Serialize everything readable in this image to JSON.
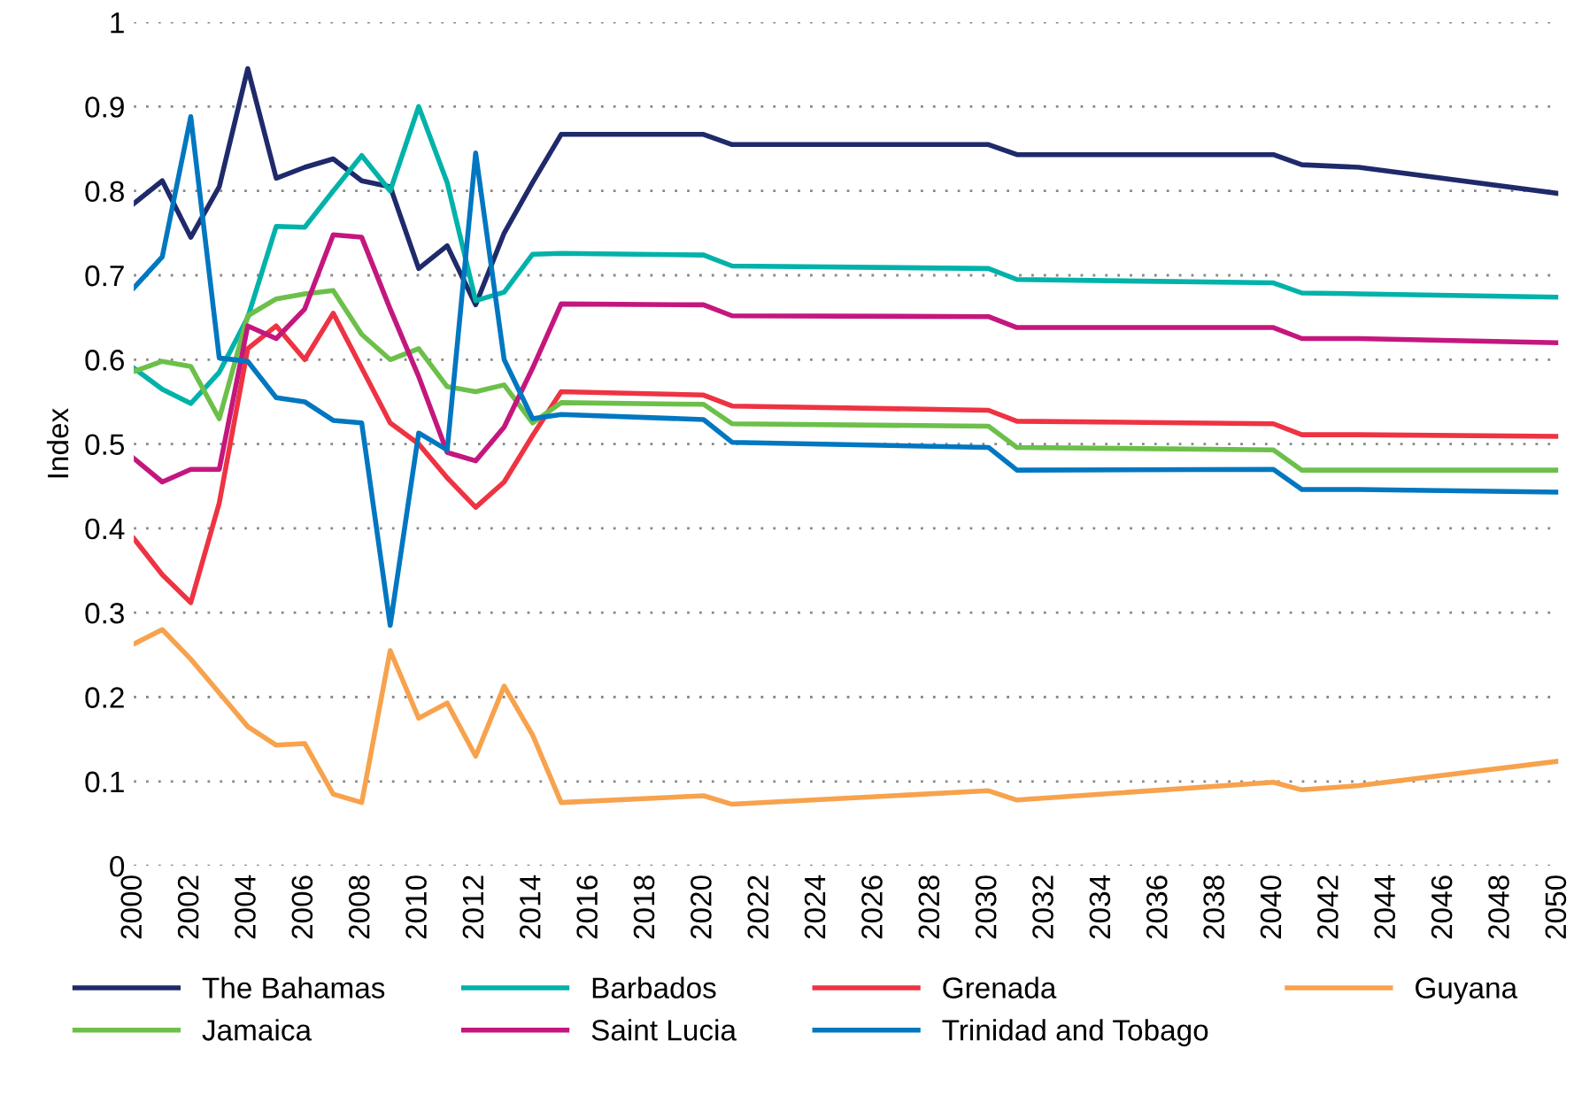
{
  "chart_data": {
    "type": "line",
    "ylabel": "Index",
    "x": [
      2000,
      2001,
      2002,
      2003,
      2004,
      2005,
      2006,
      2007,
      2008,
      2009,
      2010,
      2011,
      2012,
      2013,
      2014,
      2015,
      2020,
      2021,
      2030,
      2031,
      2040,
      2041,
      2043,
      2050
    ],
    "series": [
      {
        "name": "The Bahamas",
        "color": "#1f2a6b",
        "values": [
          0.785,
          0.812,
          0.745,
          0.805,
          0.945,
          0.815,
          0.828,
          0.838,
          0.812,
          0.805,
          0.708,
          0.735,
          0.665,
          0.75,
          0.81,
          0.867,
          0.867,
          0.855,
          0.855,
          0.843,
          0.843,
          0.831,
          0.828,
          0.797
        ]
      },
      {
        "name": "Barbados",
        "color": "#00b2a9",
        "values": [
          0.59,
          0.565,
          0.548,
          0.585,
          0.65,
          0.758,
          0.757,
          0.8,
          0.842,
          0.8,
          0.9,
          0.81,
          0.67,
          0.68,
          0.725,
          0.726,
          0.724,
          0.711,
          0.708,
          0.695,
          0.691,
          0.679,
          0.678,
          0.674
        ]
      },
      {
        "name": "Grenada",
        "color": "#ee3342",
        "values": [
          0.388,
          0.345,
          0.312,
          0.43,
          0.613,
          0.64,
          0.6,
          0.655,
          0.59,
          0.525,
          0.5,
          0.46,
          0.425,
          0.455,
          0.51,
          0.562,
          0.558,
          0.545,
          0.54,
          0.527,
          0.524,
          0.511,
          0.511,
          0.509
        ]
      },
      {
        "name": "Guyana",
        "color": "#f7a24d",
        "values": [
          0.263,
          0.28,
          0.245,
          0.205,
          0.165,
          0.143,
          0.145,
          0.085,
          0.075,
          0.255,
          0.175,
          0.193,
          0.13,
          0.213,
          0.155,
          0.075,
          0.083,
          0.073,
          0.089,
          0.078,
          0.099,
          0.09,
          0.095,
          0.124
        ]
      },
      {
        "name": "Jamaica",
        "color": "#6cc04a",
        "values": [
          0.586,
          0.598,
          0.592,
          0.53,
          0.652,
          0.672,
          0.678,
          0.682,
          0.63,
          0.6,
          0.613,
          0.568,
          0.562,
          0.57,
          0.525,
          0.549,
          0.547,
          0.524,
          0.521,
          0.496,
          0.493,
          0.469,
          0.469,
          0.469
        ]
      },
      {
        "name": "Saint Lucia",
        "color": "#c4177e",
        "values": [
          0.483,
          0.455,
          0.47,
          0.47,
          0.64,
          0.625,
          0.66,
          0.748,
          0.745,
          0.66,
          0.58,
          0.49,
          0.48,
          0.52,
          0.59,
          0.666,
          0.665,
          0.652,
          0.651,
          0.638,
          0.638,
          0.625,
          0.625,
          0.62
        ]
      },
      {
        "name": "Trinidad and Tobago",
        "color": "#0077c0",
        "values": [
          0.685,
          0.722,
          0.888,
          0.602,
          0.598,
          0.555,
          0.55,
          0.528,
          0.525,
          0.285,
          0.513,
          0.493,
          0.845,
          0.6,
          0.53,
          0.535,
          0.529,
          0.502,
          0.496,
          0.469,
          0.47,
          0.446,
          0.446,
          0.443
        ]
      }
    ],
    "xlim": [
      2000,
      2050
    ],
    "xticks": [
      2000,
      2002,
      2004,
      2006,
      2008,
      2010,
      2012,
      2014,
      2016,
      2018,
      2020,
      2022,
      2024,
      2026,
      2028,
      2030,
      2032,
      2034,
      2036,
      2038,
      2040,
      2042,
      2044,
      2046,
      2048,
      2050
    ],
    "ylim": [
      0,
      1
    ],
    "yticks": [
      0,
      0.1,
      0.2,
      0.3,
      0.4,
      0.5,
      0.6,
      0.7,
      0.8,
      0.9,
      1
    ],
    "grid": "y",
    "legend": "bottom",
    "marker": "none",
    "line_style": "solid"
  }
}
